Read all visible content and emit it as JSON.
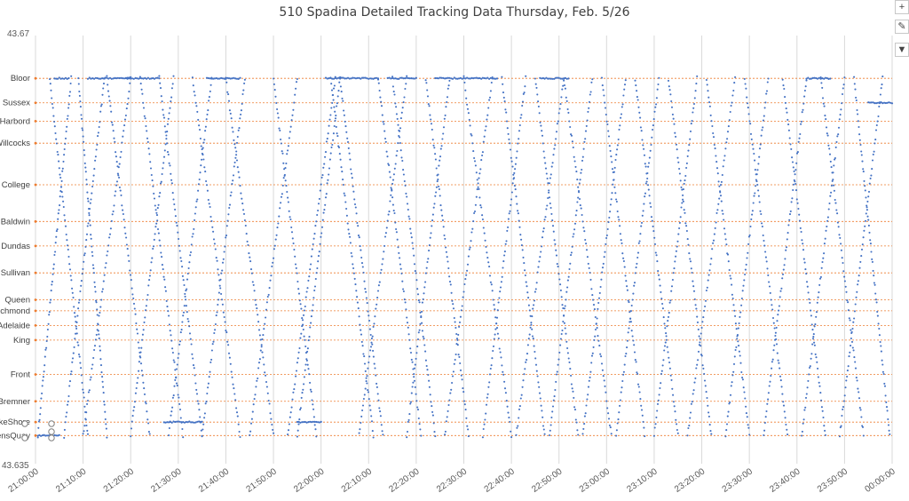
{
  "chart_title": "510 Spadina Detailed Tracking Data Thursday, Feb. 5/26",
  "toolbar": {
    "add_icon": "plus-icon",
    "style_icon": "brush-icon",
    "filter_icon": "funnel-icon"
  },
  "colors": {
    "points": "#4472c4",
    "stop_lines": "#ed7d31",
    "grid": "#d9d9d9",
    "text": "#595959"
  },
  "chart_data": {
    "type": "scatter",
    "title": "510 Spadina Detailed Tracking Data Thursday, Feb. 5/26",
    "xlabel": "",
    "ylabel": "",
    "xlim": [
      "21:00:00",
      "00:00:00"
    ],
    "x_ticks": [
      "21:00:00",
      "21:10:00",
      "21:20:00",
      "21:30:00",
      "21:40:00",
      "21:50:00",
      "22:00:00",
      "22:10:00",
      "22:20:00",
      "22:30:00",
      "22:40:00",
      "22:50:00",
      "23:00:00",
      "23:10:00",
      "23:20:00",
      "23:30:00",
      "23:40:00",
      "23:50:00",
      "00:00:00"
    ],
    "ylim": [
      43.635,
      43.67
    ],
    "y_ticks": [
      "43.635",
      "43.67"
    ],
    "grid": "vertical",
    "legend": "none",
    "stops": [
      {
        "name": "Bloor",
        "lat": 43.6665
      },
      {
        "name": "Sussex",
        "lat": 43.6645
      },
      {
        "name": "Harbord",
        "lat": 43.663
      },
      {
        "name": "Willcocks",
        "lat": 43.6612
      },
      {
        "name": "College",
        "lat": 43.6578
      },
      {
        "name": "Baldwin",
        "lat": 43.6548
      },
      {
        "name": "Dundas",
        "lat": 43.6528
      },
      {
        "name": "Sullivan",
        "lat": 43.6506
      },
      {
        "name": "Queen",
        "lat": 43.6484
      },
      {
        "name": "Richmond",
        "lat": 43.6475
      },
      {
        "name": "Adelaide",
        "lat": 43.6463
      },
      {
        "name": "King",
        "lat": 43.6451
      },
      {
        "name": "Front",
        "lat": 43.6423
      },
      {
        "name": "Bremner",
        "lat": 43.6401
      },
      {
        "name": "LakeShore",
        "lat": 43.6384
      },
      {
        "name": "QueensQuay",
        "lat": 43.6373
      }
    ],
    "series": [
      {
        "type": "vehicle_trips",
        "trips": [
          {
            "from": "21:00:30",
            "to": "21:07:30",
            "dir": "n"
          },
          {
            "from": "21:03:00",
            "to": "21:11:00",
            "dir": "s"
          },
          {
            "from": "21:06:00",
            "to": "21:14:30",
            "dir": "n"
          },
          {
            "from": "21:09:00",
            "to": "21:15:00",
            "dir": "s"
          },
          {
            "from": "21:10:00",
            "to": "21:20:00",
            "dir": "n"
          },
          {
            "from": "21:15:00",
            "to": "21:24:00",
            "dir": "s"
          },
          {
            "from": "21:20:00",
            "to": "21:29:00",
            "dir": "n"
          },
          {
            "from": "21:22:00",
            "to": "21:31:00",
            "dir": "s"
          },
          {
            "from": "21:26:00",
            "to": "21:35:00",
            "dir": "s"
          },
          {
            "from": "21:28:00",
            "to": "21:37:00",
            "dir": "n"
          },
          {
            "from": "21:33:00",
            "to": "21:43:00",
            "dir": "s"
          },
          {
            "from": "21:35:00",
            "to": "21:44:00",
            "dir": "n"
          },
          {
            "from": "21:40:00",
            "to": "21:50:00",
            "dir": "s"
          },
          {
            "from": "21:45:00",
            "to": "21:55:00",
            "dir": "n"
          },
          {
            "from": "21:50:00",
            "to": "21:59:00",
            "dir": "s"
          },
          {
            "from": "21:53:00",
            "to": "22:03:00",
            "dir": "n"
          },
          {
            "from": "21:55:00",
            "to": "22:04:00",
            "dir": "n"
          },
          {
            "from": "22:02:00",
            "to": "22:11:00",
            "dir": "s"
          },
          {
            "from": "22:04:00",
            "to": "22:13:00",
            "dir": "s"
          },
          {
            "from": "22:08:00",
            "to": "22:18:00",
            "dir": "n"
          },
          {
            "from": "22:12:00",
            "to": "22:21:00",
            "dir": "s"
          },
          {
            "from": "22:15:00",
            "to": "22:24:00",
            "dir": "s"
          },
          {
            "from": "22:18:00",
            "to": "22:27:00",
            "dir": "n"
          },
          {
            "from": "22:22:00",
            "to": "22:31:00",
            "dir": "s"
          },
          {
            "from": "22:26:00",
            "to": "22:36:00",
            "dir": "n"
          },
          {
            "from": "22:30:00",
            "to": "22:40:00",
            "dir": "s"
          },
          {
            "from": "22:34:00",
            "to": "22:43:00",
            "dir": "n"
          },
          {
            "from": "22:38:00",
            "to": "22:47:00",
            "dir": "s"
          },
          {
            "from": "22:41:00",
            "to": "22:51:00",
            "dir": "n"
          },
          {
            "from": "22:45:00",
            "to": "22:54:00",
            "dir": "s"
          },
          {
            "from": "22:48:00",
            "to": "22:57:00",
            "dir": "n"
          },
          {
            "from": "22:51:00",
            "to": "23:01:00",
            "dir": "s"
          },
          {
            "from": "22:55:00",
            "to": "23:04:00",
            "dir": "n"
          },
          {
            "from": "22:59:00",
            "to": "23:08:00",
            "dir": "s"
          },
          {
            "from": "23:02:00",
            "to": "23:11:00",
            "dir": "n"
          },
          {
            "from": "23:06:00",
            "to": "23:15:00",
            "dir": "s"
          },
          {
            "from": "23:10:00",
            "to": "23:19:00",
            "dir": "n"
          },
          {
            "from": "23:13:00",
            "to": "23:22:00",
            "dir": "s"
          },
          {
            "from": "23:17:00",
            "to": "23:27:00",
            "dir": "n"
          },
          {
            "from": "23:21:00",
            "to": "23:30:00",
            "dir": "s"
          },
          {
            "from": "23:25:00",
            "to": "23:34:00",
            "dir": "n"
          },
          {
            "from": "23:29:00",
            "to": "23:38:00",
            "dir": "s"
          },
          {
            "from": "23:33:00",
            "to": "23:42:00",
            "dir": "n"
          },
          {
            "from": "23:37:00",
            "to": "23:46:00",
            "dir": "s"
          },
          {
            "from": "23:41:00",
            "to": "23:50:00",
            "dir": "n"
          },
          {
            "from": "23:45:00",
            "to": "23:54:00",
            "dir": "s"
          },
          {
            "from": "23:49:00",
            "to": "23:58:00",
            "dir": "n"
          },
          {
            "from": "23:52:00",
            "to": "23:59:30",
            "dir": "s"
          }
        ],
        "layovers": [
          {
            "from": "21:00:30",
            "to": "21:05:00",
            "stop": "QueensQuay"
          },
          {
            "from": "21:04:00",
            "to": "21:07:00",
            "stop": "Bloor"
          },
          {
            "from": "21:11:00",
            "to": "21:20:00",
            "stop": "Bloor"
          },
          {
            "from": "21:19:00",
            "to": "21:26:00",
            "stop": "Bloor"
          },
          {
            "from": "21:27:00",
            "to": "21:35:00",
            "stop": "LakeShore"
          },
          {
            "from": "21:36:00",
            "to": "21:43:00",
            "stop": "Bloor"
          },
          {
            "from": "21:55:00",
            "to": "22:00:00",
            "stop": "LakeShore"
          },
          {
            "from": "22:01:00",
            "to": "22:12:00",
            "stop": "Bloor"
          },
          {
            "from": "22:14:00",
            "to": "22:20:00",
            "stop": "Bloor"
          },
          {
            "from": "22:24:00",
            "to": "22:37:00",
            "stop": "Bloor"
          },
          {
            "from": "22:46:00",
            "to": "22:52:00",
            "stop": "Bloor"
          },
          {
            "from": "23:42:00",
            "to": "23:47:00",
            "stop": "Bloor"
          },
          {
            "from": "23:55:00",
            "to": "00:00:00",
            "stop": "Sussex"
          }
        ]
      }
    ]
  }
}
